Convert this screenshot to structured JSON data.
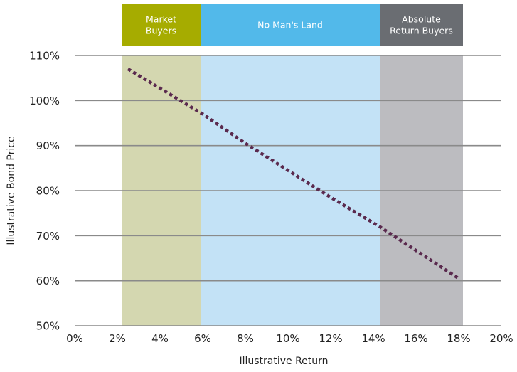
{
  "chart_data": {
    "type": "line",
    "title": "",
    "xlabel": "Illustrative Return",
    "ylabel": "Illustrative Bond Price",
    "xlim": [
      0,
      20
    ],
    "ylim": [
      50,
      110
    ],
    "x_ticks": [
      "0%",
      "2%",
      "4%",
      "6%",
      "8%",
      "10%",
      "12%",
      "14%",
      "16%",
      "18%",
      "20%"
    ],
    "y_ticks": [
      "50%",
      "60%",
      "70%",
      "80%",
      "90%",
      "100%",
      "110%"
    ],
    "grid": "horizontal",
    "series": [
      {
        "line_style": "dotted",
        "color": "#5a2a4e",
        "x": [
          2.5,
          6,
          8,
          10,
          12,
          14.3,
          18
        ],
        "y": [
          107,
          97,
          90.5,
          84.5,
          78.5,
          72,
          60.5
        ]
      }
    ],
    "bands": [
      {
        "label_lines": [
          "Market",
          "Buyers"
        ],
        "x_start": 2.2,
        "x_end": 5.9,
        "fill": "#d4d7b0",
        "header_color": "#a6ac00"
      },
      {
        "label_lines": [
          "No Man's Land"
        ],
        "x_start": 5.9,
        "x_end": 14.3,
        "fill": "#c3e2f6",
        "header_color": "#52b9ea"
      },
      {
        "label_lines": [
          "Absolute",
          "Return Buyers"
        ],
        "x_start": 14.3,
        "x_end": 18.2,
        "fill": "#bcbcc0",
        "header_color": "#6a6d72"
      }
    ]
  }
}
